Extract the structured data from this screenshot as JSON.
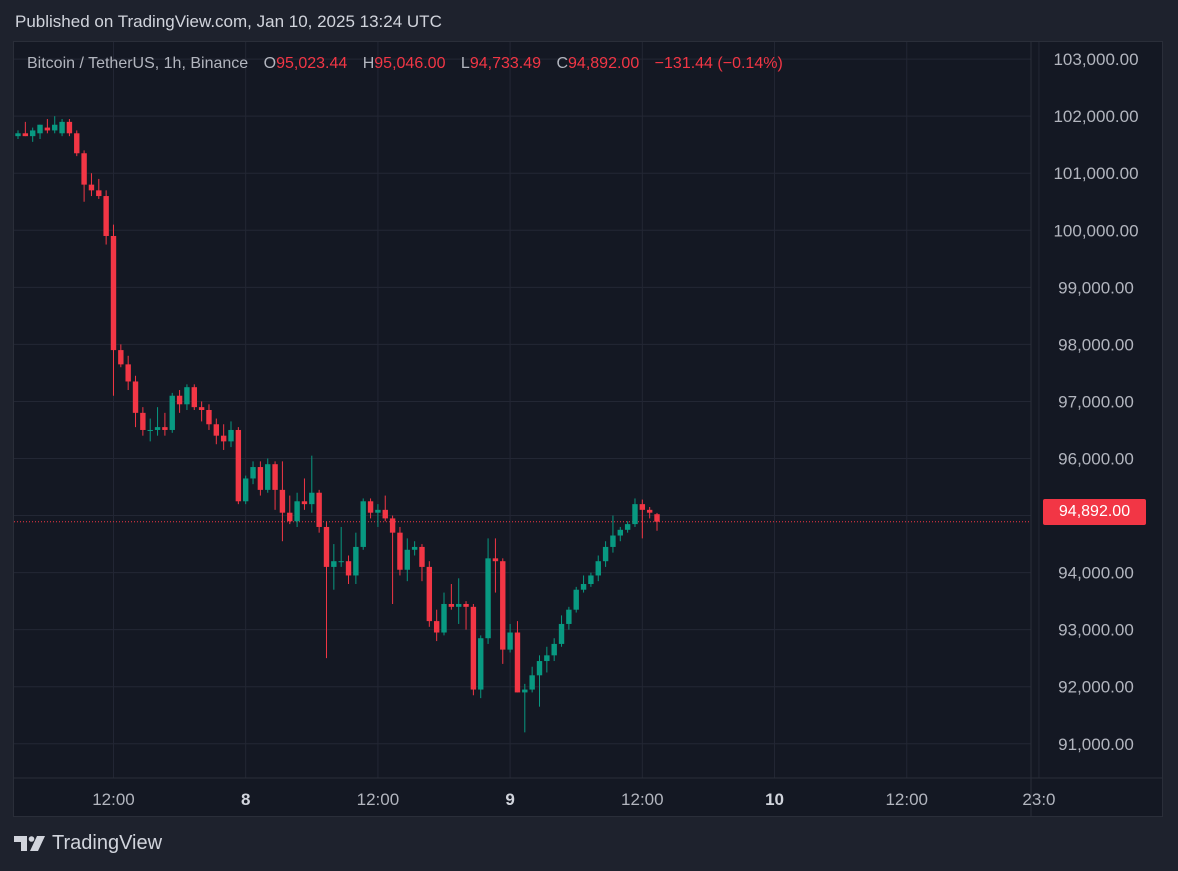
{
  "header": {
    "published": "Published on TradingView.com, Jan 10, 2025 13:24 UTC"
  },
  "legend": {
    "symbol": "Bitcoin / TetherUS, 1h, Binance",
    "open_label": "O",
    "open": "95,023.44",
    "high_label": "H",
    "high": "95,046.00",
    "low_label": "L",
    "low": "94,733.49",
    "close_label": "C",
    "close": "94,892.00",
    "change": "−131.44 (−0.14%)"
  },
  "last_price": "94,892.00",
  "brand": {
    "name": "TradingView",
    "logo_icon": "tradingview-logo-icon"
  },
  "colors": {
    "up": "#089981",
    "down": "#f23645",
    "background": "#141823",
    "grid": "#232734",
    "text": "#b2b5be"
  },
  "chart_data": {
    "type": "candlestick",
    "title": "",
    "xlabel": "",
    "ylabel": "",
    "interval": "1h",
    "ylim": [
      90400,
      103300
    ],
    "grid": true,
    "y_ticks": [
      "103,000.00",
      "102,000.00",
      "101,000.00",
      "100,000.00",
      "99,000.00",
      "98,000.00",
      "97,000.00",
      "96,000.00",
      "95,000.00",
      "94,000.00",
      "93,000.00",
      "92,000.00",
      "91,000.00"
    ],
    "y_tick_values": [
      103000,
      102000,
      101000,
      100000,
      99000,
      98000,
      97000,
      96000,
      95000,
      94000,
      93000,
      92000,
      91000
    ],
    "x_ticks": [
      {
        "label": "12:00",
        "index": 13,
        "bold": false
      },
      {
        "label": "8",
        "index": 31,
        "bold": true
      },
      {
        "label": "12:00",
        "index": 49,
        "bold": false
      },
      {
        "label": "9",
        "index": 67,
        "bold": true
      },
      {
        "label": "12:00",
        "index": 85,
        "bold": false
      },
      {
        "label": "10",
        "index": 103,
        "bold": true
      },
      {
        "label": "12:00",
        "index": 121,
        "bold": false
      },
      {
        "label": "23:0",
        "index": 139,
        "bold": false
      }
    ],
    "last_price_value": 94892,
    "candles": [
      {
        "o": 101650,
        "h": 101750,
        "l": 101600,
        "c": 101700
      },
      {
        "o": 101700,
        "h": 101900,
        "l": 101650,
        "c": 101650
      },
      {
        "o": 101650,
        "h": 101800,
        "l": 101550,
        "c": 101750
      },
      {
        "o": 101700,
        "h": 101850,
        "l": 101600,
        "c": 101850
      },
      {
        "o": 101800,
        "h": 101950,
        "l": 101700,
        "c": 101750
      },
      {
        "o": 101750,
        "h": 102000,
        "l": 101700,
        "c": 101850
      },
      {
        "o": 101700,
        "h": 101950,
        "l": 101650,
        "c": 101900
      },
      {
        "o": 101900,
        "h": 101950,
        "l": 101650,
        "c": 101700
      },
      {
        "o": 101700,
        "h": 101750,
        "l": 101300,
        "c": 101350
      },
      {
        "o": 101350,
        "h": 101400,
        "l": 100500,
        "c": 100800
      },
      {
        "o": 100800,
        "h": 101000,
        "l": 100600,
        "c": 100700
      },
      {
        "o": 100700,
        "h": 100900,
        "l": 100550,
        "c": 100600
      },
      {
        "o": 100600,
        "h": 100700,
        "l": 99750,
        "c": 99900
      },
      {
        "o": 99900,
        "h": 100100,
        "l": 97100,
        "c": 97900
      },
      {
        "o": 97900,
        "h": 98000,
        "l": 97600,
        "c": 97650
      },
      {
        "o": 97650,
        "h": 97800,
        "l": 97200,
        "c": 97350
      },
      {
        "o": 97350,
        "h": 97450,
        "l": 96550,
        "c": 96800
      },
      {
        "o": 96800,
        "h": 96900,
        "l": 96400,
        "c": 96500
      },
      {
        "o": 96500,
        "h": 96700,
        "l": 96300,
        "c": 96500
      },
      {
        "o": 96500,
        "h": 96900,
        "l": 96400,
        "c": 96550
      },
      {
        "o": 96550,
        "h": 96800,
        "l": 96400,
        "c": 96500
      },
      {
        "o": 96500,
        "h": 97150,
        "l": 96450,
        "c": 97100
      },
      {
        "o": 97100,
        "h": 97200,
        "l": 96800,
        "c": 96950
      },
      {
        "o": 96950,
        "h": 97300,
        "l": 96850,
        "c": 97250
      },
      {
        "o": 97250,
        "h": 97300,
        "l": 96850,
        "c": 96900
      },
      {
        "o": 96900,
        "h": 97000,
        "l": 96650,
        "c": 96850
      },
      {
        "o": 96850,
        "h": 96950,
        "l": 96500,
        "c": 96600
      },
      {
        "o": 96600,
        "h": 96700,
        "l": 96250,
        "c": 96400
      },
      {
        "o": 96400,
        "h": 96600,
        "l": 96150,
        "c": 96300
      },
      {
        "o": 96300,
        "h": 96650,
        "l": 96200,
        "c": 96500
      },
      {
        "o": 96500,
        "h": 96550,
        "l": 95200,
        "c": 95250
      },
      {
        "o": 95250,
        "h": 95700,
        "l": 95200,
        "c": 95650
      },
      {
        "o": 95650,
        "h": 95950,
        "l": 95550,
        "c": 95850
      },
      {
        "o": 95850,
        "h": 95950,
        "l": 95350,
        "c": 95450
      },
      {
        "o": 95450,
        "h": 96000,
        "l": 95400,
        "c": 95900
      },
      {
        "o": 95900,
        "h": 95950,
        "l": 95100,
        "c": 95450
      },
      {
        "o": 95450,
        "h": 95950,
        "l": 94550,
        "c": 95050
      },
      {
        "o": 95050,
        "h": 95350,
        "l": 94850,
        "c": 94900
      },
      {
        "o": 94900,
        "h": 95400,
        "l": 94800,
        "c": 95250
      },
      {
        "o": 95250,
        "h": 95650,
        "l": 95100,
        "c": 95200
      },
      {
        "o": 95200,
        "h": 96050,
        "l": 95050,
        "c": 95400
      },
      {
        "o": 95400,
        "h": 95450,
        "l": 94700,
        "c": 94800
      },
      {
        "o": 94800,
        "h": 94900,
        "l": 92500,
        "c": 94100
      },
      {
        "o": 94100,
        "h": 94500,
        "l": 93700,
        "c": 94200
      },
      {
        "o": 94200,
        "h": 94800,
        "l": 94100,
        "c": 94200
      },
      {
        "o": 94200,
        "h": 94300,
        "l": 93800,
        "c": 93950
      },
      {
        "o": 93950,
        "h": 94700,
        "l": 93800,
        "c": 94450
      },
      {
        "o": 94450,
        "h": 95300,
        "l": 94400,
        "c": 95250
      },
      {
        "o": 95250,
        "h": 95300,
        "l": 94950,
        "c": 95050
      },
      {
        "o": 95050,
        "h": 95200,
        "l": 94800,
        "c": 95100
      },
      {
        "o": 95100,
        "h": 95350,
        "l": 94900,
        "c": 94950
      },
      {
        "o": 94950,
        "h": 95000,
        "l": 93450,
        "c": 94700
      },
      {
        "o": 94700,
        "h": 94800,
        "l": 93950,
        "c": 94050
      },
      {
        "o": 94050,
        "h": 94600,
        "l": 93850,
        "c": 94400
      },
      {
        "o": 94400,
        "h": 94550,
        "l": 94300,
        "c": 94450
      },
      {
        "o": 94450,
        "h": 94500,
        "l": 93850,
        "c": 94100
      },
      {
        "o": 94100,
        "h": 94200,
        "l": 93050,
        "c": 93150
      },
      {
        "o": 93150,
        "h": 93350,
        "l": 92800,
        "c": 92950
      },
      {
        "o": 92950,
        "h": 93650,
        "l": 92900,
        "c": 93450
      },
      {
        "o": 93450,
        "h": 93800,
        "l": 93350,
        "c": 93400
      },
      {
        "o": 93400,
        "h": 93900,
        "l": 93100,
        "c": 93450
      },
      {
        "o": 93450,
        "h": 93500,
        "l": 93000,
        "c": 93400
      },
      {
        "o": 93400,
        "h": 93450,
        "l": 91850,
        "c": 91950
      },
      {
        "o": 91950,
        "h": 92900,
        "l": 91800,
        "c": 92850
      },
      {
        "o": 92850,
        "h": 94600,
        "l": 92750,
        "c": 94250
      },
      {
        "o": 94250,
        "h": 94600,
        "l": 93650,
        "c": 94200
      },
      {
        "o": 94200,
        "h": 94250,
        "l": 92400,
        "c": 92650
      },
      {
        "o": 92650,
        "h": 93100,
        "l": 92600,
        "c": 92950
      },
      {
        "o": 92950,
        "h": 93150,
        "l": 91900,
        "c": 91900
      },
      {
        "o": 91900,
        "h": 92050,
        "l": 91200,
        "c": 91950
      },
      {
        "o": 91950,
        "h": 92350,
        "l": 91900,
        "c": 92200
      },
      {
        "o": 92200,
        "h": 92550,
        "l": 91650,
        "c": 92450
      },
      {
        "o": 92450,
        "h": 92700,
        "l": 92250,
        "c": 92550
      },
      {
        "o": 92550,
        "h": 92850,
        "l": 92450,
        "c": 92750
      },
      {
        "o": 92750,
        "h": 93250,
        "l": 92700,
        "c": 93100
      },
      {
        "o": 93100,
        "h": 93400,
        "l": 93000,
        "c": 93350
      },
      {
        "o": 93350,
        "h": 93750,
        "l": 93300,
        "c": 93700
      },
      {
        "o": 93700,
        "h": 93950,
        "l": 93650,
        "c": 93800
      },
      {
        "o": 93800,
        "h": 94000,
        "l": 93750,
        "c": 93950
      },
      {
        "o": 93950,
        "h": 94300,
        "l": 93850,
        "c": 94200
      },
      {
        "o": 94200,
        "h": 94550,
        "l": 94100,
        "c": 94450
      },
      {
        "o": 94450,
        "h": 95000,
        "l": 94350,
        "c": 94650
      },
      {
        "o": 94650,
        "h": 94800,
        "l": 94550,
        "c": 94750
      },
      {
        "o": 94750,
        "h": 94900,
        "l": 94700,
        "c": 94850
      },
      {
        "o": 94850,
        "h": 95300,
        "l": 94800,
        "c": 95200
      },
      {
        "o": 95200,
        "h": 95280,
        "l": 94600,
        "c": 95100
      },
      {
        "o": 95100,
        "h": 95150,
        "l": 94950,
        "c": 95050
      },
      {
        "o": 95023.44,
        "h": 95046,
        "l": 94733.49,
        "c": 94892
      }
    ]
  }
}
